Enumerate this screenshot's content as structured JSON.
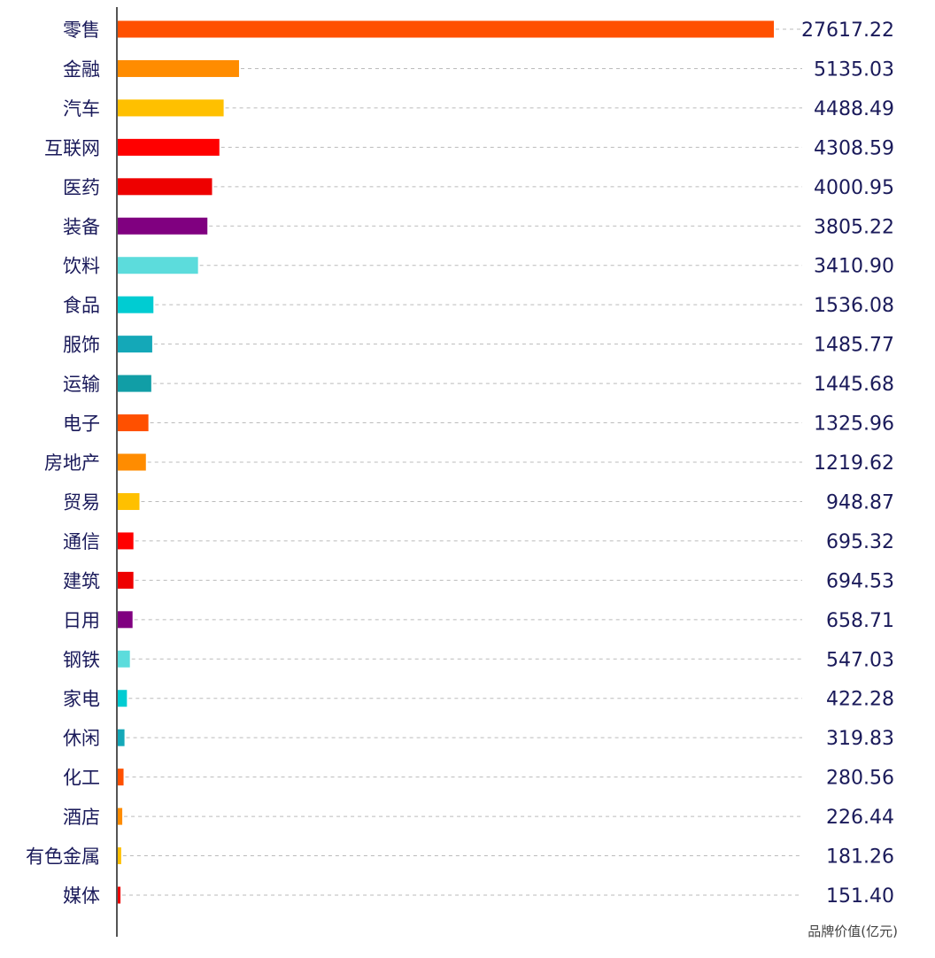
{
  "chart_data": {
    "type": "bar",
    "orientation": "horizontal",
    "categories": [
      "零售",
      "金融",
      "汽车",
      "互联网",
      "医药",
      "装备",
      "饮料",
      "食品",
      "服饰",
      "运输",
      "电子",
      "房地产",
      "贸易",
      "通信",
      "建筑",
      "日用",
      "钢铁",
      "家电",
      "休闲",
      "化工",
      "酒店",
      "有色金属",
      "媒体"
    ],
    "values": [
      27617.22,
      5135.03,
      4488.49,
      4308.59,
      4000.95,
      3805.22,
      3410.9,
      1536.08,
      1485.77,
      1445.68,
      1325.96,
      1219.62,
      948.87,
      695.32,
      694.53,
      658.71,
      547.03,
      422.28,
      319.83,
      280.56,
      226.44,
      181.26,
      151.4
    ],
    "value_labels": [
      "27617.22",
      "5135.03",
      "4488.49",
      "4308.59",
      "4000.95",
      "3805.22",
      "3410.90",
      "1536.08",
      "1485.77",
      "1445.68",
      "1325.96",
      "1219.62",
      "948.87",
      "695.32",
      "694.53",
      "658.71",
      "547.03",
      "422.28",
      "319.83",
      "280.56",
      "226.44",
      "181.26",
      "151.40"
    ],
    "colors": [
      "#ff5000",
      "#ff8c00",
      "#ffc000",
      "#ff0000",
      "#ee0000",
      "#800080",
      "#5cdcdc",
      "#00ccd2",
      "#14a8b8",
      "#119ea6",
      "#ff5000",
      "#ff8c00",
      "#ffc000",
      "#ff0000",
      "#ee0000",
      "#800080",
      "#5cdcdc",
      "#00ccd2",
      "#14a8b8",
      "#ff5000",
      "#ff8c00",
      "#ffc000",
      "#ee0000"
    ],
    "unit_label": "品牌价值(亿元)",
    "xlim": [
      0,
      27617.22
    ],
    "grid": false,
    "leader_lines": "dashed"
  }
}
